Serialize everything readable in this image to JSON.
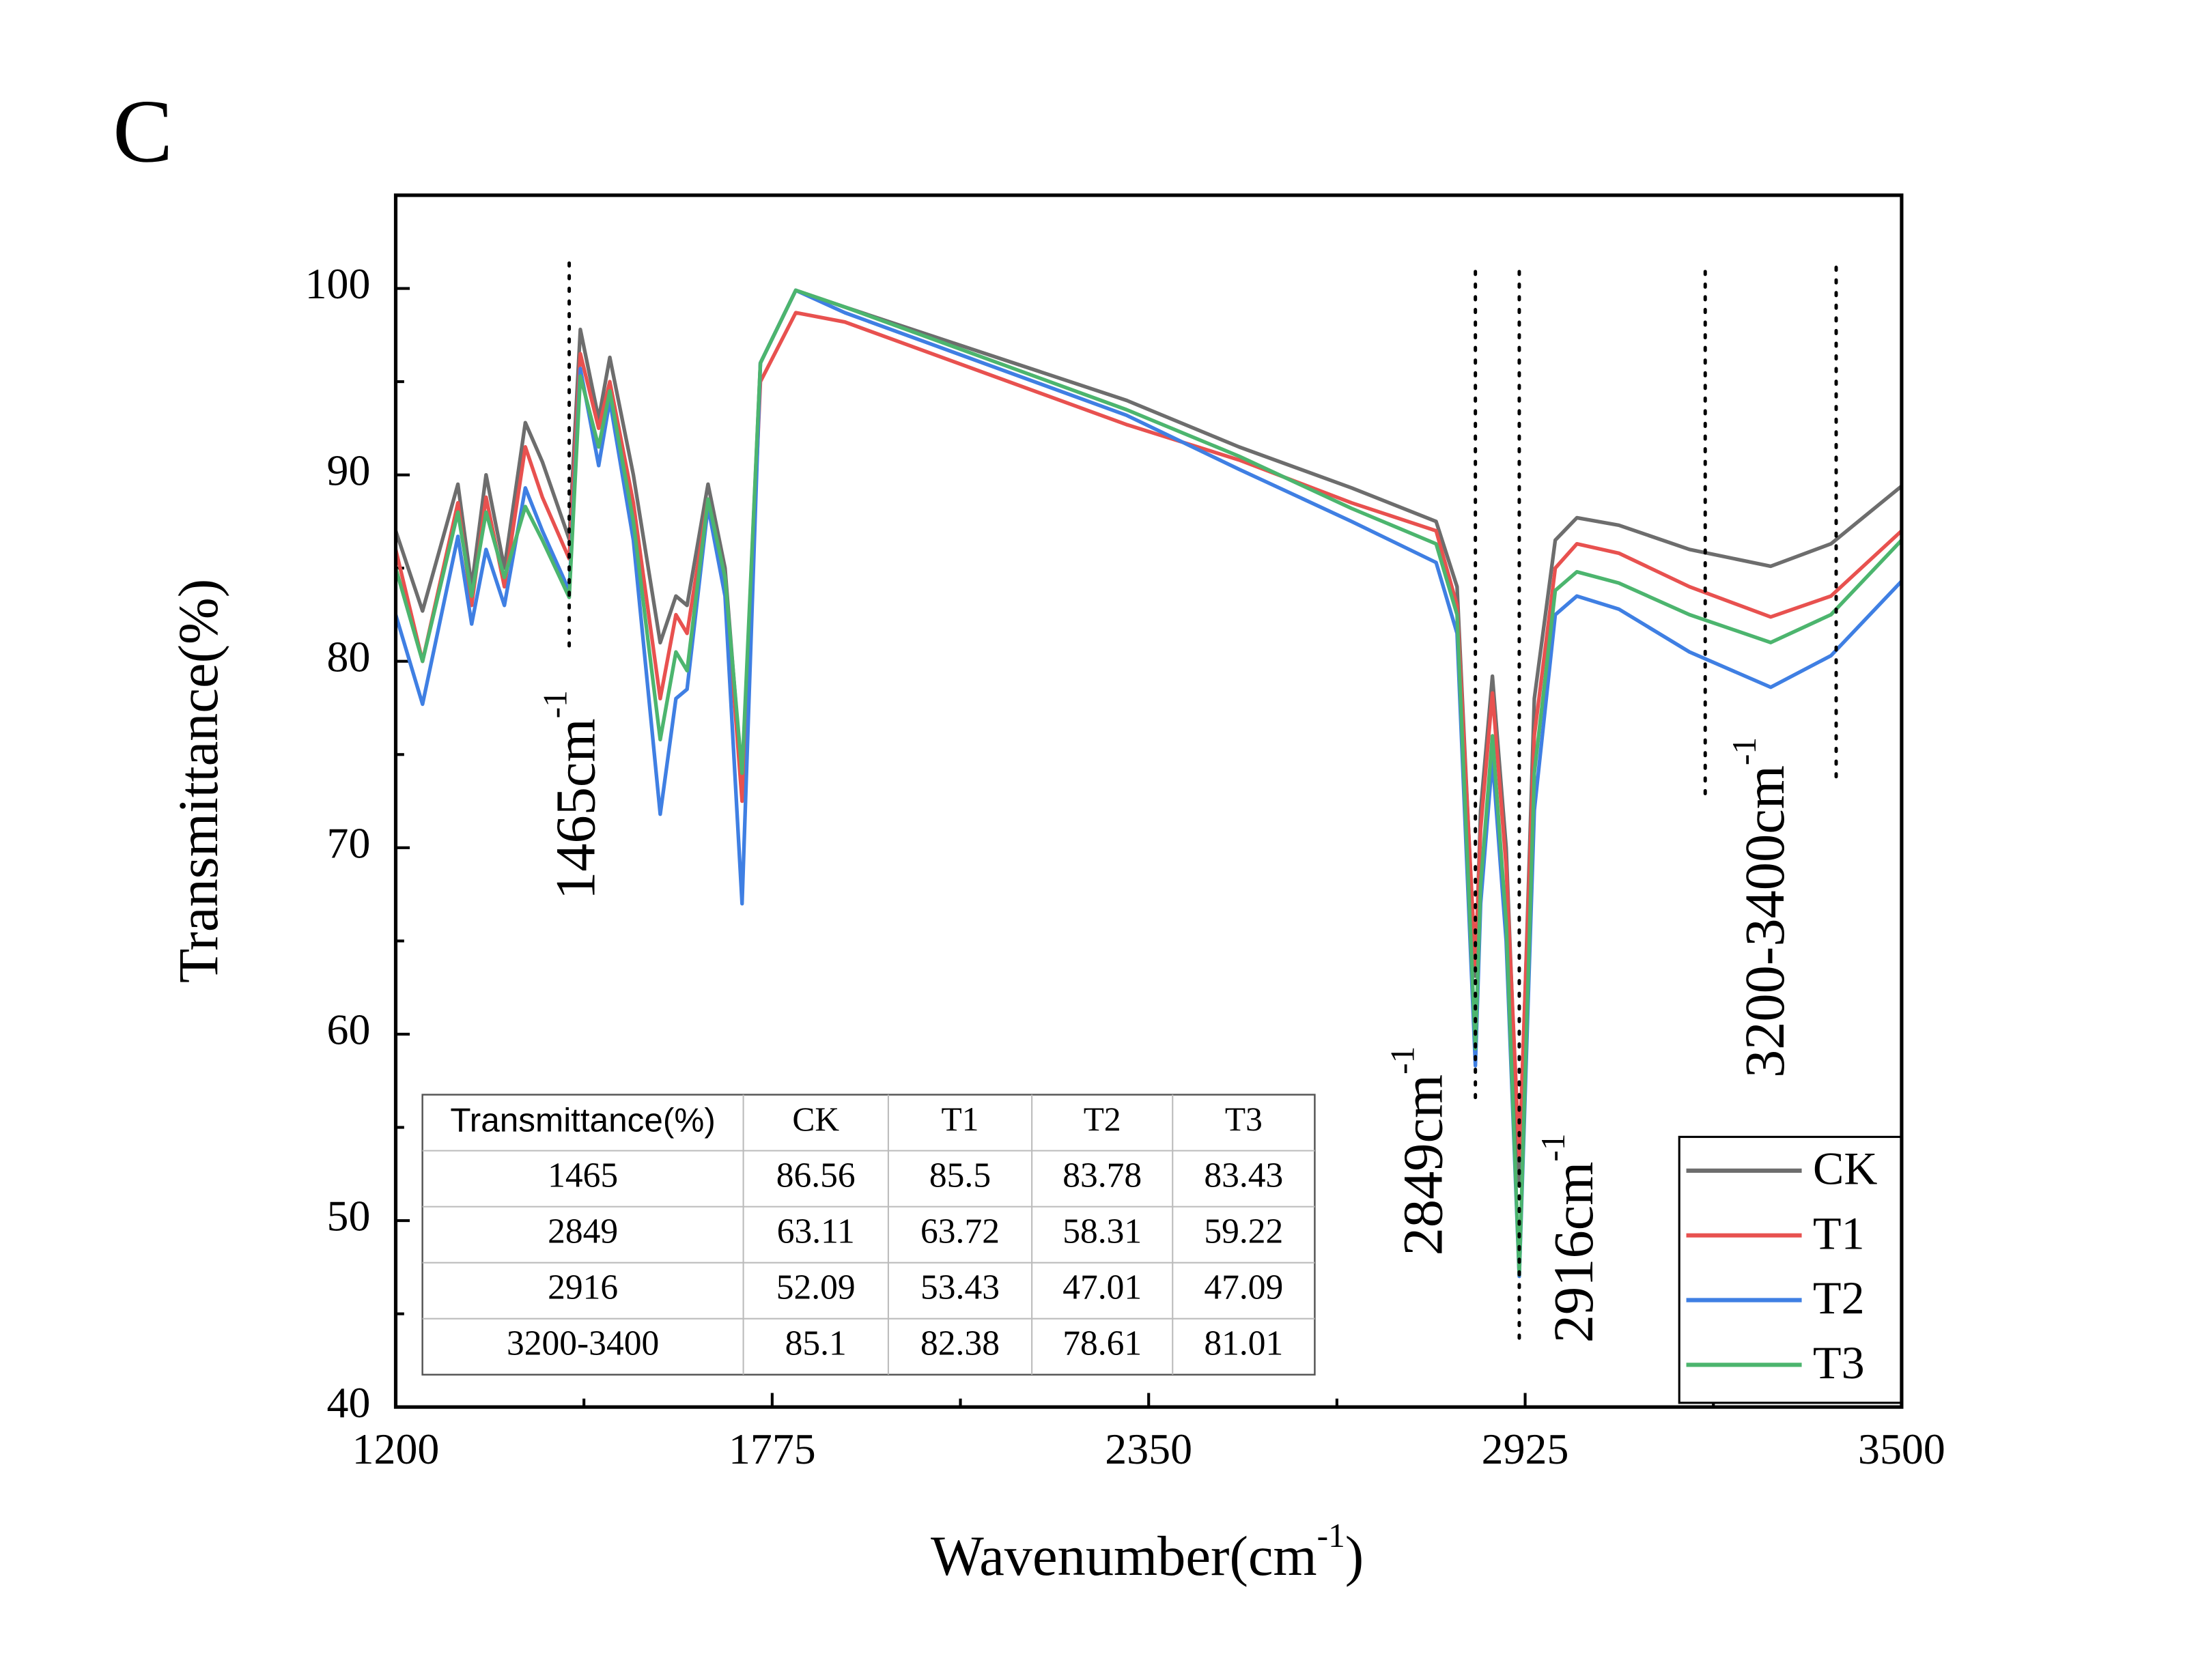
{
  "chart_data": {
    "type": "line",
    "panel_label": "C",
    "x_label": {
      "text": "Wavenumber(cm",
      "sup": "-1",
      "end": ")"
    },
    "y_label": "Transmittance(%)",
    "xlim": [
      1200,
      3500
    ],
    "xticks": [
      1200,
      1775,
      2350,
      2925,
      3500
    ],
    "ylim": [
      40,
      105
    ],
    "yticks": [
      40,
      50,
      60,
      70,
      80,
      90,
      100
    ],
    "x": [
      1200,
      1241,
      1295,
      1316,
      1338,
      1366,
      1398,
      1424,
      1465,
      1482,
      1510,
      1527,
      1563,
      1604,
      1628,
      1645,
      1677,
      1703,
      1729,
      1757,
      1811,
      1886,
      2316,
      2488,
      2660,
      2789,
      2821,
      2849,
      2857,
      2875,
      2896,
      2916,
      2939,
      2971,
      3004,
      3068,
      3176,
      3300,
      3392,
      3500
    ],
    "series": [
      {
        "name": "CK",
        "color": "#6d6d6d",
        "values": [
          87,
          82.7,
          89.5,
          84,
          90,
          85,
          92.8,
          90.7,
          86.56,
          97.8,
          93,
          96.3,
          90,
          81,
          83.5,
          83,
          89.5,
          85,
          73.5,
          96,
          99.9,
          99,
          94,
          91.5,
          89.3,
          87.5,
          84,
          63.11,
          72,
          79.2,
          70,
          52.09,
          78,
          86.5,
          87.7,
          87.3,
          86,
          85.1,
          86.3,
          89.4
        ]
      },
      {
        "name": "T1",
        "color": "#e8514f",
        "values": [
          86,
          80,
          88.5,
          83,
          88.8,
          84,
          91.5,
          88.8,
          85.5,
          96.5,
          92.5,
          95,
          88.5,
          78,
          82.5,
          81.5,
          88.7,
          84.5,
          72.5,
          95,
          98.7,
          98.2,
          92.7,
          90.8,
          88.5,
          87,
          83,
          63.72,
          71,
          78.3,
          69,
          53.43,
          76,
          85,
          86.3,
          85.8,
          84,
          82.38,
          83.5,
          87
        ]
      },
      {
        "name": "T2",
        "color": "#3f7fe3",
        "values": [
          82.5,
          77.7,
          86.7,
          82,
          86,
          83,
          89.3,
          87,
          83.78,
          95.7,
          90.5,
          94,
          86.5,
          71.8,
          78,
          78.5,
          88.3,
          83.5,
          67,
          96,
          99.9,
          98.7,
          93.2,
          90.3,
          87.5,
          85.3,
          81.5,
          58.31,
          67,
          74.8,
          65,
          47.01,
          72,
          82.5,
          83.5,
          82.8,
          80.5,
          78.61,
          80.3,
          84.3
        ]
      },
      {
        "name": "T3",
        "color": "#4cb56e",
        "values": [
          85,
          80,
          88,
          83.5,
          88,
          84.5,
          88.3,
          86.5,
          83.43,
          95.3,
          91.5,
          94.5,
          87.5,
          75.8,
          80.5,
          79.5,
          88.7,
          84.5,
          74,
          96,
          99.9,
          99,
          93.5,
          91,
          88.2,
          86.3,
          82.5,
          59.22,
          68,
          76,
          66,
          47.09,
          74,
          83.8,
          84.8,
          84.2,
          82.5,
          81.01,
          82.5,
          86.5
        ]
      }
    ],
    "legend": "lower right",
    "annotations": [
      {
        "text": "1465cm",
        "sup": "-1",
        "x": [
          1465
        ]
      },
      {
        "text": "2849cm",
        "sup": "-1",
        "x": [
          2849
        ]
      },
      {
        "text": "2916cm",
        "sup": "-1",
        "x": [
          2916
        ]
      },
      {
        "text": "3200-3400cm",
        "sup": "-1",
        "x": [
          3200,
          3400
        ]
      }
    ],
    "table": {
      "header": [
        "Transmittance(%)",
        "CK",
        "T1",
        "T2",
        "T3"
      ],
      "rows": [
        {
          "label": "1465",
          "values": [
            86.56,
            85.5,
            83.78,
            83.43
          ]
        },
        {
          "label": "2849",
          "values": [
            63.11,
            63.72,
            58.31,
            59.22
          ]
        },
        {
          "label": "2916",
          "values": [
            52.09,
            53.43,
            47.01,
            47.09
          ]
        },
        {
          "label": "3200-3400",
          "values": [
            85.1,
            82.38,
            78.61,
            81.01
          ]
        }
      ]
    }
  }
}
